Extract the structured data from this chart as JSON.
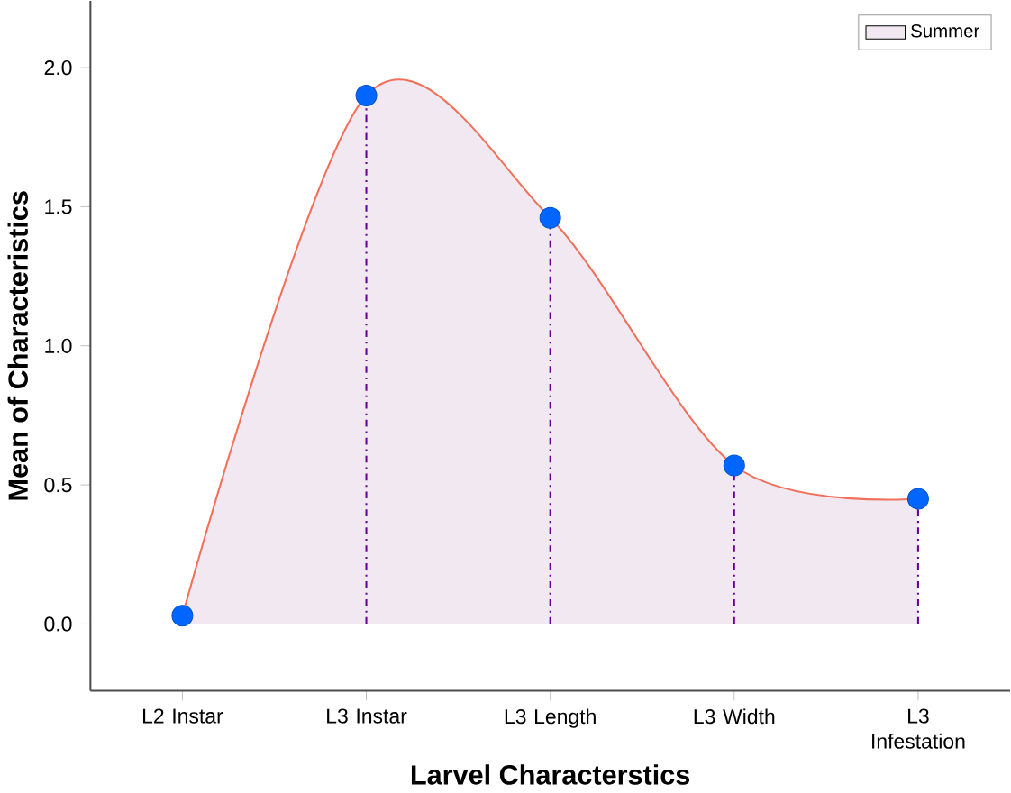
{
  "chart_data": {
    "type": "area",
    "xlabel": "Larvel Characterstics",
    "ylabel": "Mean of Characteristics",
    "categories": [
      "L2 Instar",
      "L3 Instar",
      "L3 Length",
      "L3 Width",
      "L3 Infestation"
    ],
    "series": [
      {
        "name": "Summer",
        "color": "#f0705a",
        "values": [
          0.03,
          1.9,
          1.46,
          0.57,
          0.45
        ]
      },
      {
        "type": "lollipop",
        "color": "#660099",
        "marker": "circle",
        "colors": [
          "#0066ff",
          "#0066ff",
          "#0066ff",
          "#0066ff",
          "#0066ff"
        ],
        "values": [
          0.03,
          1.9,
          1.46,
          0.57,
          0.45
        ]
      }
    ],
    "ylim": [
      -0.24,
      2.24
    ],
    "yticks": [
      {
        "value": 0,
        "label": "0.0"
      },
      {
        "value": 0.5,
        "label": "0.5"
      },
      {
        "value": 1,
        "label": "1.0"
      },
      {
        "value": 1.5,
        "label": "1.5"
      },
      {
        "value": 2,
        "label": "2.0"
      }
    ],
    "legend": "top right",
    "grid": false
  }
}
